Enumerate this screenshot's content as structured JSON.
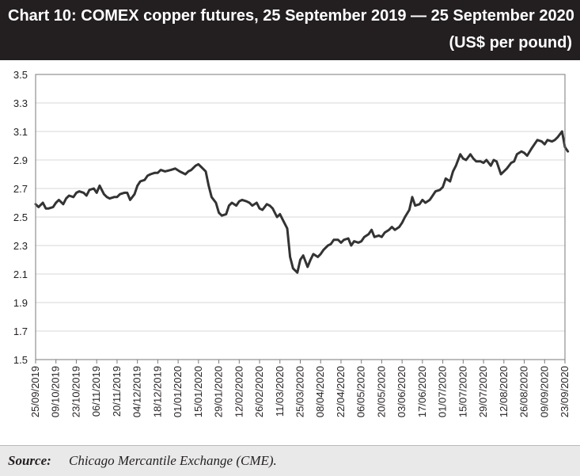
{
  "header": {
    "title": "Chart 10: COMEX copper futures, 25 September 2019 — 25 September 2020",
    "subtitle": "(US$ per pound)"
  },
  "footer": {
    "source_label": "Source:",
    "source_text": "Chicago Mercantile Exchange (CME)."
  },
  "colors": {
    "header_bg": "#231f20",
    "line": "#333333",
    "footer_bg": "#e9e9e9"
  },
  "chart_data": {
    "type": "line",
    "title": "Chart 10: COMEX copper futures, 25 September 2019 — 25 September 2020",
    "unit": "(US$ per pound)",
    "xlabel": "",
    "ylabel": "",
    "ylim": [
      1.5,
      3.5
    ],
    "yticks": [
      "1.5",
      "1.7",
      "1.9",
      "2.1",
      "2.3",
      "2.5",
      "2.7",
      "2.9",
      "3.1",
      "3.3",
      "3.5"
    ],
    "grid": "horizontal",
    "xticks": [
      "25/09/2019",
      "09/10/2019",
      "23/10/2019",
      "06/11/2019",
      "20/11/2019",
      "04/12/2019",
      "18/12/2019",
      "01/01/2020",
      "15/01/2020",
      "29/01/2020",
      "12/02/2020",
      "26/02/2020",
      "11/03/2020",
      "25/03/2020",
      "08/04/2020",
      "22/04/2020",
      "06/05/2020",
      "20/05/2020",
      "03/06/2020",
      "17/06/2020",
      "01/07/2020",
      "15/07/2020",
      "29/07/2020",
      "12/08/2020",
      "26/08/2020",
      "09/09/2020",
      "23/09/2020"
    ],
    "series": [
      {
        "x": [
          "2019-09-25",
          "2019-09-27",
          "2019-09-30",
          "2019-10-02",
          "2019-10-04",
          "2019-10-07",
          "2019-10-09",
          "2019-10-11",
          "2019-10-14",
          "2019-10-16",
          "2019-10-18",
          "2019-10-21",
          "2019-10-23",
          "2019-10-25",
          "2019-10-28",
          "2019-10-30",
          "2019-11-01",
          "2019-11-04",
          "2019-11-06",
          "2019-11-08",
          "2019-11-11",
          "2019-11-13",
          "2019-11-15",
          "2019-11-18",
          "2019-11-20",
          "2019-11-22",
          "2019-11-25",
          "2019-11-27",
          "2019-11-29",
          "2019-12-02",
          "2019-12-04",
          "2019-12-06",
          "2019-12-09",
          "2019-12-11",
          "2019-12-13",
          "2019-12-16",
          "2019-12-18",
          "2019-12-20",
          "2019-12-23",
          "2019-12-27",
          "2019-12-30",
          "2020-01-02",
          "2020-01-06",
          "2020-01-08",
          "2020-01-10",
          "2020-01-13",
          "2020-01-15",
          "2020-01-17",
          "2020-01-20",
          "2020-01-22",
          "2020-01-24",
          "2020-01-27",
          "2020-01-29",
          "2020-01-31",
          "2020-02-03",
          "2020-02-05",
          "2020-02-07",
          "2020-02-10",
          "2020-02-12",
          "2020-02-14",
          "2020-02-17",
          "2020-02-19",
          "2020-02-21",
          "2020-02-24",
          "2020-02-26",
          "2020-02-28",
          "2020-03-02",
          "2020-03-04",
          "2020-03-06",
          "2020-03-09",
          "2020-03-11",
          "2020-03-13",
          "2020-03-16",
          "2020-03-18",
          "2020-03-19",
          "2020-03-20",
          "2020-03-23",
          "2020-03-25",
          "2020-03-27",
          "2020-03-30",
          "2020-04-01",
          "2020-04-03",
          "2020-04-06",
          "2020-04-08",
          "2020-04-10",
          "2020-04-13",
          "2020-04-15",
          "2020-04-17",
          "2020-04-20",
          "2020-04-22",
          "2020-04-24",
          "2020-04-27",
          "2020-04-29",
          "2020-05-01",
          "2020-05-04",
          "2020-05-06",
          "2020-05-08",
          "2020-05-11",
          "2020-05-13",
          "2020-05-15",
          "2020-05-18",
          "2020-05-20",
          "2020-05-22",
          "2020-05-25",
          "2020-05-27",
          "2020-05-29",
          "2020-06-01",
          "2020-06-03",
          "2020-06-05",
          "2020-06-08",
          "2020-06-10",
          "2020-06-12",
          "2020-06-15",
          "2020-06-17",
          "2020-06-19",
          "2020-06-22",
          "2020-06-24",
          "2020-06-26",
          "2020-06-29",
          "2020-07-01",
          "2020-07-03",
          "2020-07-06",
          "2020-07-08",
          "2020-07-10",
          "2020-07-13",
          "2020-07-15",
          "2020-07-17",
          "2020-07-20",
          "2020-07-22",
          "2020-07-24",
          "2020-07-27",
          "2020-07-29",
          "2020-07-31",
          "2020-08-03",
          "2020-08-05",
          "2020-08-07",
          "2020-08-10",
          "2020-08-12",
          "2020-08-14",
          "2020-08-17",
          "2020-08-19",
          "2020-08-21",
          "2020-08-24",
          "2020-08-26",
          "2020-08-28",
          "2020-08-31",
          "2020-09-02",
          "2020-09-04",
          "2020-09-07",
          "2020-09-09",
          "2020-09-11",
          "2020-09-14",
          "2020-09-16",
          "2020-09-18",
          "2020-09-21",
          "2020-09-23",
          "2020-09-25"
        ],
        "values": [
          2.59,
          2.57,
          2.6,
          2.56,
          2.56,
          2.57,
          2.6,
          2.62,
          2.59,
          2.63,
          2.65,
          2.64,
          2.67,
          2.68,
          2.67,
          2.65,
          2.69,
          2.7,
          2.67,
          2.72,
          2.66,
          2.64,
          2.63,
          2.64,
          2.64,
          2.66,
          2.67,
          2.67,
          2.62,
          2.66,
          2.72,
          2.75,
          2.76,
          2.79,
          2.8,
          2.81,
          2.81,
          2.83,
          2.82,
          2.83,
          2.84,
          2.82,
          2.8,
          2.82,
          2.83,
          2.86,
          2.87,
          2.85,
          2.82,
          2.72,
          2.64,
          2.6,
          2.53,
          2.51,
          2.52,
          2.58,
          2.6,
          2.58,
          2.61,
          2.62,
          2.61,
          2.6,
          2.58,
          2.6,
          2.56,
          2.55,
          2.59,
          2.58,
          2.56,
          2.5,
          2.52,
          2.48,
          2.42,
          2.22,
          2.18,
          2.14,
          2.11,
          2.2,
          2.23,
          2.15,
          2.2,
          2.24,
          2.22,
          2.24,
          2.27,
          2.3,
          2.31,
          2.34,
          2.34,
          2.32,
          2.34,
          2.35,
          2.3,
          2.33,
          2.32,
          2.33,
          2.36,
          2.38,
          2.41,
          2.36,
          2.37,
          2.36,
          2.39,
          2.41,
          2.43,
          2.41,
          2.43,
          2.46,
          2.5,
          2.55,
          2.64,
          2.58,
          2.59,
          2.62,
          2.6,
          2.62,
          2.65,
          2.68,
          2.69,
          2.71,
          2.77,
          2.75,
          2.82,
          2.86,
          2.94,
          2.91,
          2.9,
          2.94,
          2.91,
          2.89,
          2.89,
          2.88,
          2.9,
          2.86,
          2.9,
          2.89,
          2.8,
          2.82,
          2.84,
          2.88,
          2.89,
          2.94,
          2.96,
          2.95,
          2.93,
          2.98,
          3.01,
          3.04,
          3.03,
          3.01,
          3.04,
          3.03,
          3.04,
          3.06,
          3.1,
          2.99,
          2.96
        ]
      }
    ]
  }
}
